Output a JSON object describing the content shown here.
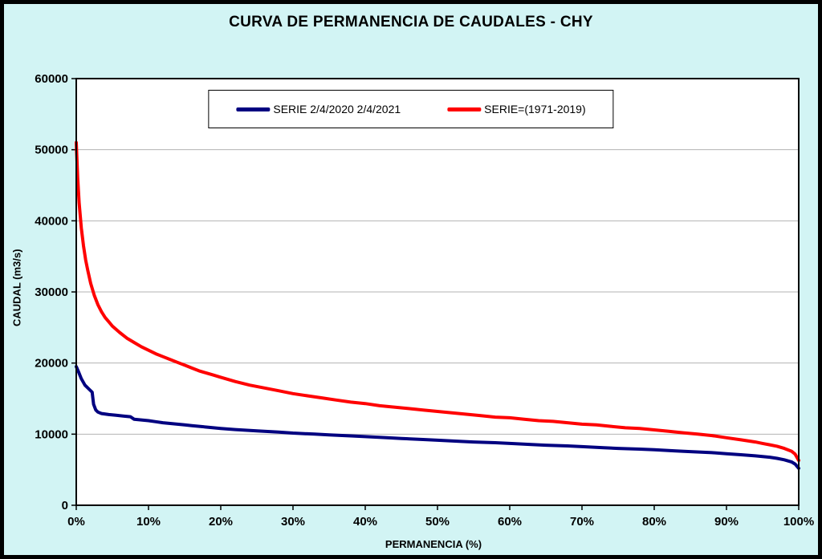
{
  "page": {
    "background_color": "#d2f4f4",
    "frame_color": "#000000"
  },
  "chart_data": {
    "type": "line",
    "title": "CURVA DE PERMANENCIA DE CAUDALES - CHY",
    "xlabel": "PERMANENCIA (%)",
    "ylabel": "CAUDAL (m3/s)",
    "xlim": [
      0,
      100
    ],
    "ylim": [
      0,
      60000
    ],
    "grid": {
      "horizontal": true,
      "vertical": false,
      "color": "#b3b3b3"
    },
    "legend": {
      "position": "top-center",
      "border": true,
      "background": "#ffffff"
    },
    "x_ticks": [
      {
        "value": 0,
        "label": "0%"
      },
      {
        "value": 10,
        "label": "10%"
      },
      {
        "value": 20,
        "label": "20%"
      },
      {
        "value": 30,
        "label": "30%"
      },
      {
        "value": 40,
        "label": "40%"
      },
      {
        "value": 50,
        "label": "50%"
      },
      {
        "value": 60,
        "label": "60%"
      },
      {
        "value": 70,
        "label": "70%"
      },
      {
        "value": 80,
        "label": "80%"
      },
      {
        "value": 90,
        "label": "90%"
      },
      {
        "value": 100,
        "label": "100%"
      }
    ],
    "y_ticks": [
      {
        "value": 0,
        "label": "0"
      },
      {
        "value": 10000,
        "label": "10000"
      },
      {
        "value": 20000,
        "label": "20000"
      },
      {
        "value": 30000,
        "label": "30000"
      },
      {
        "value": 40000,
        "label": "40000"
      },
      {
        "value": 50000,
        "label": "50000"
      },
      {
        "value": 60000,
        "label": "60000"
      }
    ],
    "series": [
      {
        "name": "SERIE 2/4/2020 2/4/2021",
        "color": "#000080",
        "line_width": 4,
        "x": [
          0,
          0.3,
          0.7,
          1.2,
          1.8,
          2.2,
          2.4,
          2.7,
          3,
          3.5,
          4.5,
          5.5,
          6.5,
          7.5,
          8,
          9,
          10,
          11,
          12,
          13,
          14,
          15,
          16,
          18,
          20,
          22,
          25,
          28,
          30,
          33,
          35,
          38,
          40,
          43,
          45,
          48,
          50,
          53,
          55,
          58,
          60,
          63,
          65,
          68,
          70,
          73,
          75,
          78,
          80,
          83,
          85,
          88,
          90,
          92,
          94,
          95,
          96,
          97,
          98,
          99,
          99.5,
          100
        ],
        "y": [
          19500,
          18800,
          17800,
          16900,
          16300,
          15900,
          14200,
          13400,
          13100,
          12900,
          12750,
          12650,
          12550,
          12450,
          12100,
          12000,
          11900,
          11750,
          11600,
          11500,
          11400,
          11300,
          11200,
          11000,
          10800,
          10650,
          10450,
          10300,
          10150,
          10000,
          9900,
          9750,
          9650,
          9500,
          9400,
          9250,
          9150,
          9000,
          8900,
          8800,
          8700,
          8550,
          8450,
          8350,
          8250,
          8100,
          8000,
          7900,
          7800,
          7650,
          7550,
          7400,
          7250,
          7100,
          6950,
          6850,
          6750,
          6600,
          6400,
          6100,
          5800,
          5200
        ]
      },
      {
        "name": "SERIE=(1971-2019)",
        "color": "#ff0000",
        "line_width": 4,
        "x": [
          0,
          0.2,
          0.4,
          0.7,
          1,
          1.3,
          1.6,
          2,
          2.5,
          3,
          3.5,
          4,
          4.5,
          5,
          6,
          7,
          8,
          9,
          10,
          11,
          12,
          13,
          14,
          15,
          16,
          17,
          18,
          19,
          20,
          22,
          24,
          26,
          28,
          30,
          32,
          34,
          36,
          38,
          40,
          42,
          44,
          46,
          48,
          50,
          52,
          54,
          56,
          58,
          60,
          62,
          64,
          66,
          68,
          70,
          72,
          74,
          76,
          78,
          80,
          82,
          84,
          86,
          88,
          90,
          92,
          94,
          95,
          96,
          97,
          98,
          99,
          99.5,
          100
        ],
        "y": [
          51000,
          46000,
          42500,
          39000,
          36500,
          34500,
          33000,
          31200,
          29500,
          28200,
          27200,
          26400,
          25800,
          25200,
          24300,
          23500,
          22900,
          22300,
          21800,
          21300,
          20900,
          20500,
          20100,
          19700,
          19300,
          18900,
          18600,
          18300,
          18000,
          17400,
          16900,
          16500,
          16100,
          15700,
          15400,
          15100,
          14800,
          14500,
          14300,
          14000,
          13800,
          13600,
          13400,
          13200,
          13000,
          12800,
          12600,
          12400,
          12300,
          12100,
          11900,
          11800,
          11600,
          11400,
          11300,
          11100,
          10900,
          10800,
          10600,
          10400,
          10200,
          10000,
          9800,
          9500,
          9200,
          8900,
          8700,
          8500,
          8300,
          8000,
          7600,
          7200,
          6300
        ]
      }
    ]
  }
}
